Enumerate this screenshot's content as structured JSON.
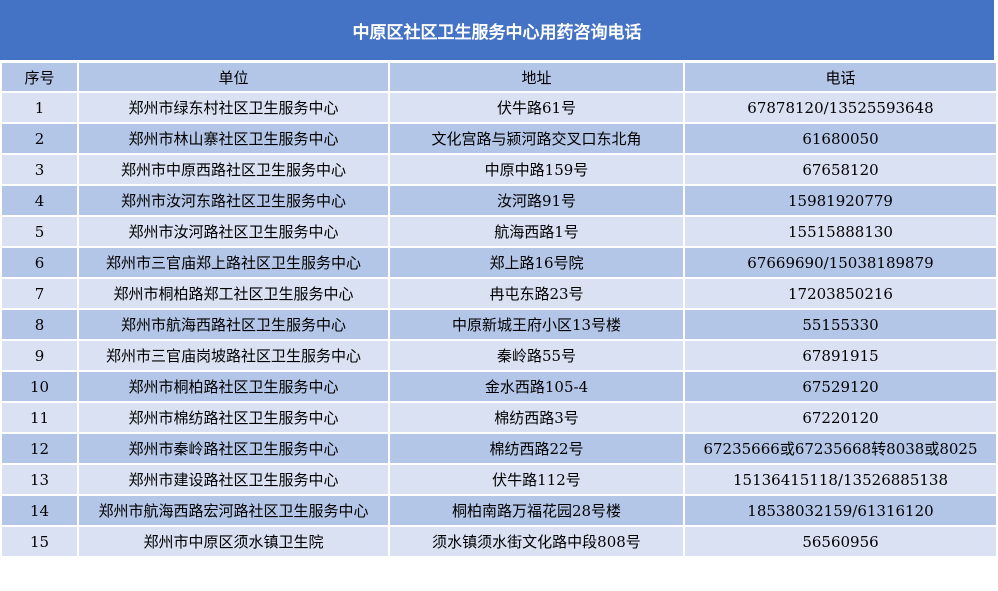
{
  "title": "中原区社区卫生服务中心用药咨询电话",
  "colors": {
    "title_bg": "#4472C4",
    "row_light": "#D9E1F2",
    "row_dark": "#B4C6E7"
  },
  "headers": [
    "序号",
    "单位",
    "地址",
    "电话"
  ],
  "rows": [
    [
      "1",
      "郑州市绿东村社区卫生服务中心",
      "伏牛路61号",
      "67878120/13525593648"
    ],
    [
      "2",
      "郑州市林山寨社区卫生服务中心",
      "文化宫路与颍河路交叉口东北角",
      "61680050"
    ],
    [
      "3",
      "郑州市中原西路社区卫生服务中心",
      "中原中路159号",
      "67658120"
    ],
    [
      "4",
      "郑州市汝河东路社区卫生服务中心",
      "汝河路91号",
      "15981920779"
    ],
    [
      "5",
      "郑州市汝河路社区卫生服务中心",
      "航海西路1号",
      "15515888130"
    ],
    [
      "6",
      "郑州市三官庙郑上路社区卫生服务中心",
      "郑上路16号院",
      "67669690/15038189879"
    ],
    [
      "7",
      "郑州市桐柏路郑工社区卫生服务中心",
      "冉屯东路23号",
      "17203850216"
    ],
    [
      "8",
      "郑州市航海西路社区卫生服务中心",
      "中原新城王府小区13号楼",
      "55155330"
    ],
    [
      "9",
      "郑州市三官庙岗坡路社区卫生服务中心",
      "秦岭路55号",
      "67891915"
    ],
    [
      "10",
      "郑州市桐柏路社区卫生服务中心",
      "金水西路105-4",
      "67529120"
    ],
    [
      "11",
      "郑州市棉纺路社区卫生服务中心",
      "棉纺西路3号",
      "67220120"
    ],
    [
      "12",
      "郑州市秦岭路社区卫生服务中心",
      "棉纺西路22号",
      "67235666或67235668转8038或8025"
    ],
    [
      "13",
      "郑州市建设路社区卫生服务中心",
      "伏牛路112号",
      "15136415118/13526885138"
    ],
    [
      "14",
      "郑州市航海西路宏河路社区卫生服务中心",
      "桐柏南路万福花园28号楼",
      "18538032159/61316120"
    ],
    [
      "15",
      "郑州市中原区须水镇卫生院",
      "须水镇须水街文化路中段808号",
      "56560956"
    ]
  ]
}
